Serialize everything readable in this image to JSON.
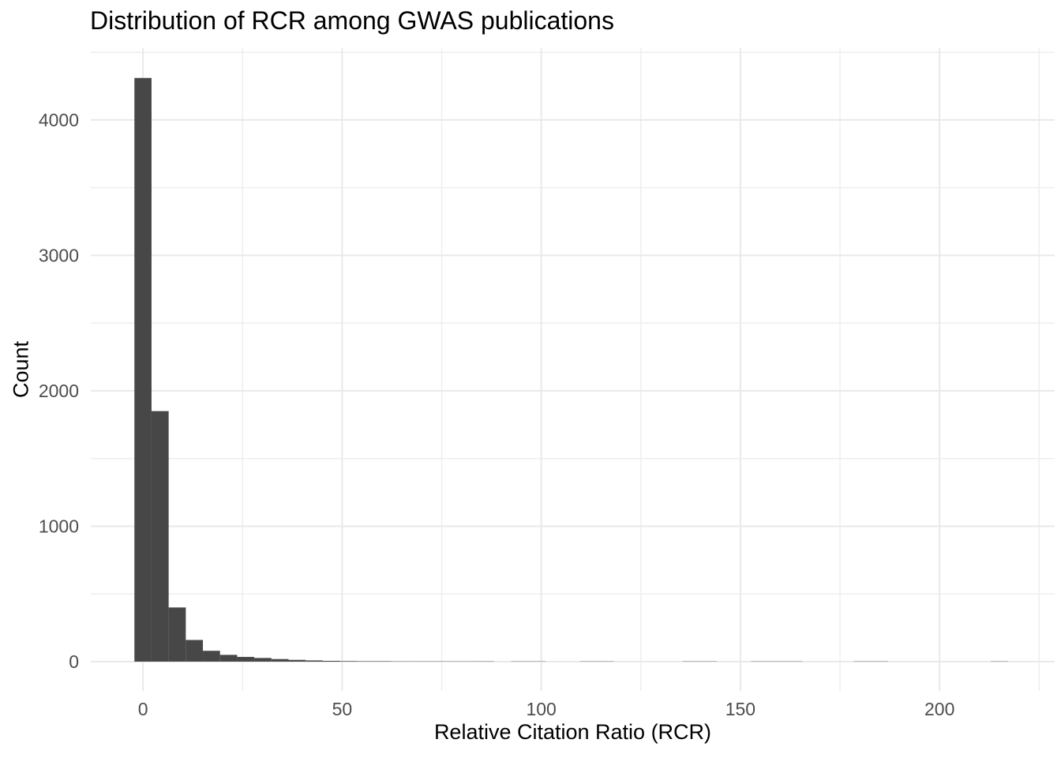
{
  "chart_data": {
    "type": "bar",
    "subtype": "histogram",
    "title": "Distribution of RCR among GWAS publications",
    "xlabel": "Relative Citation Ratio (RCR)",
    "ylabel": "Count",
    "x_major_ticks": [
      0,
      50,
      100,
      150,
      200
    ],
    "x_minor_ticks": [
      25,
      75,
      125,
      175,
      225
    ],
    "y_major_ticks": [
      0,
      1000,
      2000,
      3000,
      4000
    ],
    "y_minor_ticks": [
      500,
      1500,
      2500,
      3500,
      4500
    ],
    "xlim": [
      -13.1,
      228.9
    ],
    "ylim": [
      -216,
      4530
    ],
    "binwidth": 4.3,
    "grid": "on",
    "legend": "none",
    "bins": [
      {
        "x": 0.0,
        "count": 4310
      },
      {
        "x": 4.3,
        "count": 1850
      },
      {
        "x": 8.6,
        "count": 400
      },
      {
        "x": 12.9,
        "count": 160
      },
      {
        "x": 17.2,
        "count": 80
      },
      {
        "x": 21.5,
        "count": 50
      },
      {
        "x": 25.8,
        "count": 35
      },
      {
        "x": 30.1,
        "count": 27
      },
      {
        "x": 34.4,
        "count": 19
      },
      {
        "x": 38.7,
        "count": 13
      },
      {
        "x": 43.0,
        "count": 9
      },
      {
        "x": 47.3,
        "count": 6
      },
      {
        "x": 51.6,
        "count": 4
      },
      {
        "x": 55.9,
        "count": 3
      },
      {
        "x": 60.2,
        "count": 3
      },
      {
        "x": 64.5,
        "count": 2
      },
      {
        "x": 68.8,
        "count": 2
      },
      {
        "x": 73.1,
        "count": 2
      },
      {
        "x": 77.4,
        "count": 1
      },
      {
        "x": 81.7,
        "count": 1
      },
      {
        "x": 86.0,
        "count": 2
      },
      {
        "x": 94.6,
        "count": 1
      },
      {
        "x": 98.9,
        "count": 1
      },
      {
        "x": 111.8,
        "count": 1
      },
      {
        "x": 116.1,
        "count": 1
      },
      {
        "x": 137.6,
        "count": 1
      },
      {
        "x": 141.9,
        "count": 1
      },
      {
        "x": 154.8,
        "count": 1
      },
      {
        "x": 159.1,
        "count": 1
      },
      {
        "x": 163.4,
        "count": 1
      },
      {
        "x": 180.6,
        "count": 1
      },
      {
        "x": 184.9,
        "count": 1
      },
      {
        "x": 215.0,
        "count": 1
      }
    ],
    "colors": {
      "bar_fill": "#474747",
      "grid_major": "#E9E9E9",
      "grid_minor": "#EDEDED",
      "tick_label": "#4D4D4D",
      "title_text": "#000000",
      "background": "#FFFFFF"
    }
  }
}
